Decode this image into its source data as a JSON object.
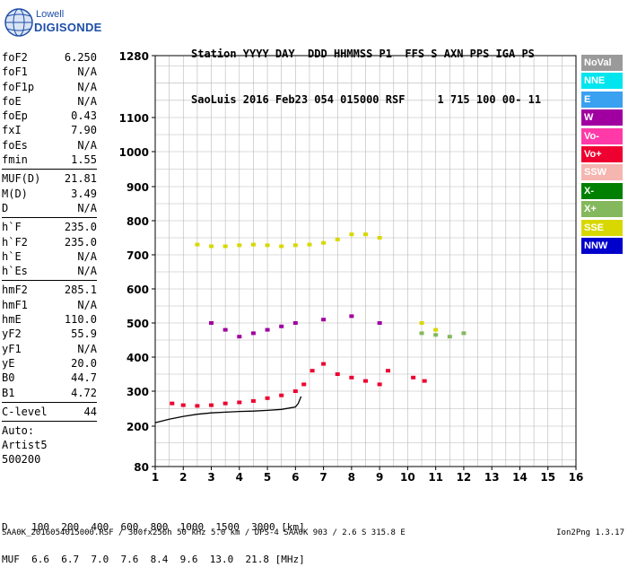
{
  "logo": {
    "line1": "Lowell",
    "line2": "DIGISONDE"
  },
  "header": {
    "line1": "Station YYYY DAY  DDD HHMMSS P1  FFS S AXN PPS IGA PS",
    "line2": "SaoLuis 2016 Feb23 054 015000 RSF     1 715 100 00- 11"
  },
  "params": [
    {
      "name": "foF2",
      "value": "6.250"
    },
    {
      "name": "foF1",
      "value": "N/A"
    },
    {
      "name": "foF1p",
      "value": "N/A"
    },
    {
      "name": "foE",
      "value": "N/A"
    },
    {
      "name": "foEp",
      "value": "0.43"
    },
    {
      "name": "fxI",
      "value": "7.90"
    },
    {
      "name": "foEs",
      "value": "N/A"
    },
    {
      "name": "fmin",
      "value": "1.55"
    },
    {
      "name": "MUF(D)",
      "value": "21.81"
    },
    {
      "name": "M(D)",
      "value": "3.49"
    },
    {
      "name": "D",
      "value": "N/A"
    },
    {
      "name": "h`F",
      "value": "235.0"
    },
    {
      "name": "h`F2",
      "value": "235.0"
    },
    {
      "name": "h`E",
      "value": "N/A"
    },
    {
      "name": "h`Es",
      "value": "N/A"
    },
    {
      "name": "hmF2",
      "value": "285.1"
    },
    {
      "name": "hmF1",
      "value": "N/A"
    },
    {
      "name": "hmE",
      "value": "110.0"
    },
    {
      "name": "yF2",
      "value": "55.9"
    },
    {
      "name": "yF1",
      "value": "N/A"
    },
    {
      "name": "yE",
      "value": "20.0"
    },
    {
      "name": "B0",
      "value": "44.7"
    },
    {
      "name": "B1",
      "value": "4.72"
    },
    {
      "name": "C-level",
      "value": "44"
    }
  ],
  "autoscale": {
    "line1": "Auto:",
    "line2": "Artist5",
    "line3": "500200"
  },
  "legend": [
    {
      "label": "NoVal",
      "color": "#9a9a9a"
    },
    {
      "label": "NNE",
      "color": "#00e5ee"
    },
    {
      "label": "E",
      "color": "#3aa0f0"
    },
    {
      "label": "W",
      "color": "#a000a0"
    },
    {
      "label": "Vo-",
      "color": "#ff3aa8"
    },
    {
      "label": "Vo+",
      "color": "#ee0030"
    },
    {
      "label": "SSW",
      "color": "#f5b6b0"
    },
    {
      "label": "X-",
      "color": "#008000"
    },
    {
      "label": "X+",
      "color": "#84b85c"
    },
    {
      "label": "SSE",
      "color": "#d8d800"
    },
    {
      "label": "NNW",
      "color": "#0000cc"
    }
  ],
  "footer": {
    "d_line": "D    100  200  400  600  800  1000  1500  3000 [km]",
    "muf_line": "MUF  6.6  6.7  7.0  7.6  8.4  9.6  13.0  21.8 [MHz]",
    "file_line": "SAA0K_2016054015000.RSF / 300fx256h 50 kHz 5.0 km / DPS-4 SAA0K 903 / 2.6 S 315.8 E",
    "version": "Ion2Png 1.3.17"
  },
  "chart_data": {
    "type": "scatter",
    "title": "",
    "xlabel": "",
    "ylabel": "",
    "xlim": [
      1,
      16
    ],
    "x_ticks": [
      1,
      2,
      3,
      4,
      5,
      6,
      7,
      8,
      9,
      10,
      11,
      12,
      13,
      14,
      15,
      16
    ],
    "y_ticks": [
      80,
      200,
      300,
      400,
      500,
      600,
      700,
      800,
      900,
      1000,
      1100,
      1280
    ],
    "y_scale": "reciprocal-like (ionogram virtual height)",
    "grid": true,
    "legend_position": "right",
    "series": [
      {
        "name": "Vo+",
        "color": "#ee0030",
        "x": [
          1.6,
          2.0,
          2.5,
          3.0,
          3.5,
          4.0,
          4.5,
          5.0,
          5.5,
          6.0,
          6.3,
          6.6,
          7.0,
          7.5,
          8.0,
          8.5,
          9.0,
          9.3,
          10.2,
          10.6
        ],
        "y": [
          265,
          260,
          258,
          260,
          265,
          268,
          272,
          280,
          288,
          300,
          320,
          360,
          380,
          350,
          340,
          330,
          320,
          360,
          340,
          330
        ]
      },
      {
        "name": "SSE",
        "color": "#d8d800",
        "x": [
          2.5,
          3.0,
          3.5,
          4.0,
          4.5,
          5.0,
          5.5,
          6.0,
          6.5,
          7.0,
          7.5,
          8.0,
          8.5,
          9.0,
          10.5,
          11.0
        ],
        "y": [
          730,
          725,
          725,
          728,
          730,
          728,
          725,
          728,
          730,
          735,
          745,
          760,
          760,
          750,
          500,
          480
        ]
      },
      {
        "name": "W",
        "color": "#a000a0",
        "x": [
          3.0,
          3.5,
          4.0,
          4.5,
          5.0,
          5.5,
          6.0,
          7.0,
          8.0,
          9.0
        ],
        "y": [
          500,
          480,
          460,
          470,
          480,
          490,
          500,
          510,
          520,
          500
        ]
      },
      {
        "name": "X+",
        "color": "#84b85c",
        "x": [
          10.5,
          11.0,
          11.5,
          12.0
        ],
        "y": [
          470,
          465,
          460,
          470
        ]
      }
    ],
    "profile_curve": {
      "x": [
        1.0,
        1.5,
        2.0,
        2.5,
        3.0,
        3.5,
        4.0,
        4.5,
        5.0,
        5.5,
        6.0,
        6.1,
        6.2
      ],
      "y": [
        210,
        220,
        228,
        234,
        238,
        240,
        242,
        243,
        245,
        248,
        255,
        265,
        285
      ]
    }
  }
}
